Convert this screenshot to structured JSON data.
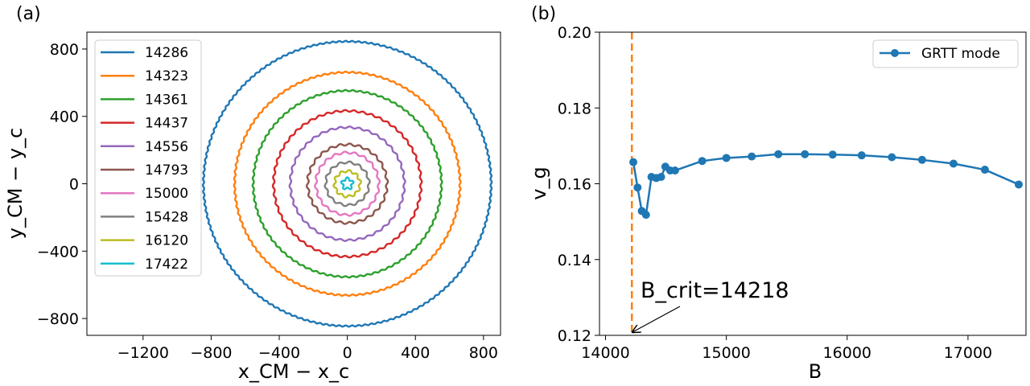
{
  "chart_data": [
    {
      "panel_label": "(a)",
      "type": "line",
      "title": "",
      "xlabel": "x_CM − x_c",
      "ylabel": "y_CM − y_c",
      "xlim": [
        -1530,
        900
      ],
      "ylim": [
        -900,
        900
      ],
      "xticks": [
        -1200,
        -800,
        -400,
        0,
        400,
        800
      ],
      "yticks": [
        -800,
        -400,
        0,
        400,
        800
      ],
      "xtick_labels": [
        "−1200",
        "−800",
        "−400",
        "0",
        "400",
        "800"
      ],
      "ytick_labels": [
        "−800",
        "−400",
        "0",
        "400",
        "800"
      ],
      "legend_position": "upper-left",
      "series": [
        {
          "name": "14286",
          "radius": 845,
          "wiggle": 4,
          "lobes": 140,
          "color": "#1f77b4"
        },
        {
          "name": "14323",
          "radius": 662,
          "wiggle": 4,
          "lobes": 100,
          "color": "#ff7f0e"
        },
        {
          "name": "14361",
          "radius": 553,
          "wiggle": 4,
          "lobes": 80,
          "color": "#2ca02c"
        },
        {
          "name": "14437",
          "radius": 433,
          "wiggle": 5,
          "lobes": 52,
          "color": "#d62728"
        },
        {
          "name": "14556",
          "radius": 335,
          "wiggle": 5,
          "lobes": 38,
          "color": "#9467bd"
        },
        {
          "name": "14793",
          "radius": 233,
          "wiggle": 6,
          "lobes": 26,
          "color": "#8c564b"
        },
        {
          "name": "15000",
          "radius": 185,
          "wiggle": 6,
          "lobes": 20,
          "color": "#e377c2"
        },
        {
          "name": "15428",
          "radius": 127,
          "wiggle": 6,
          "lobes": 14,
          "color": "#7f7f7f"
        },
        {
          "name": "16120",
          "radius": 75,
          "wiggle": 7,
          "lobes": 10,
          "color": "#bcbd22"
        },
        {
          "name": "17422",
          "radius": 30,
          "wiggle": 8,
          "lobes": 5,
          "color": "#17becf"
        }
      ]
    },
    {
      "panel_label": "(b)",
      "type": "line",
      "title": "",
      "xlabel": "B",
      "ylabel": "v_g",
      "xlim": [
        13950,
        17480
      ],
      "ylim": [
        0.12,
        0.2
      ],
      "xticks": [
        14000,
        15000,
        16000,
        17000
      ],
      "yticks": [
        0.12,
        0.14,
        0.16,
        0.18,
        0.2
      ],
      "xtick_labels": [
        "14000",
        "15000",
        "16000",
        "17000"
      ],
      "ytick_labels": [
        "0.12",
        "0.14",
        "0.16",
        "0.18",
        "0.20"
      ],
      "legend_position": "upper-right",
      "series": [
        {
          "name": "GRTT mode",
          "color": "#1f77b4",
          "x": [
            14230,
            14265,
            14300,
            14335,
            14380,
            14420,
            14460,
            14495,
            14535,
            14575,
            14800,
            15000,
            15210,
            15430,
            15650,
            15880,
            16120,
            16370,
            16620,
            16880,
            17140,
            17420
          ],
          "y": [
            0.1657,
            0.159,
            0.1528,
            0.1518,
            0.1618,
            0.1615,
            0.1618,
            0.1645,
            0.1635,
            0.1635,
            0.166,
            0.1668,
            0.1672,
            0.1678,
            0.1678,
            0.1677,
            0.1675,
            0.167,
            0.1663,
            0.1653,
            0.1637,
            0.1598
          ]
        }
      ],
      "vline": {
        "x": 14218,
        "color": "#ff7f0e",
        "style": "dashed"
      },
      "annotation": {
        "text": "B_crit=14218",
        "x": 14218,
        "y": 0.12
      }
    }
  ]
}
